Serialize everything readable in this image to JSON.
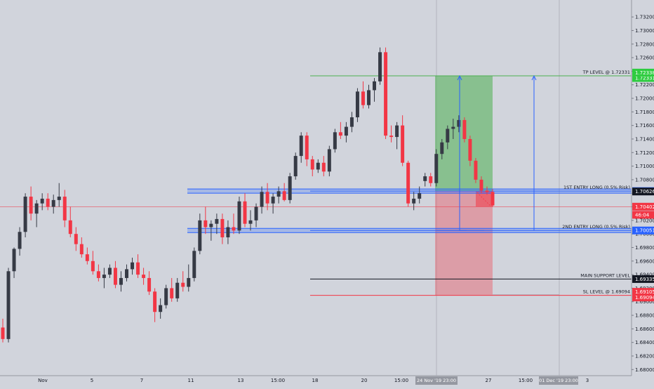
{
  "chart_data": {
    "type": "candlestick",
    "symbol_hint": "",
    "y_axis": {
      "ylim": [
        1.6791,
        1.7345
      ],
      "ticks": [
        "1.73200",
        "1.73000",
        "1.72800",
        "1.72600",
        "1.72400",
        "1.72200",
        "1.72000",
        "1.71800",
        "1.71600",
        "1.71400",
        "1.71200",
        "1.71000",
        "1.70800",
        "1.70600",
        "1.70400",
        "1.70200",
        "1.70000",
        "1.69800",
        "1.69600",
        "1.69400",
        "1.69200",
        "1.69000",
        "1.68800",
        "1.68600",
        "1.68400",
        "1.68200",
        "1.68000"
      ]
    },
    "x_axis": {
      "ticks": [
        "Nov",
        "5",
        "7",
        "11",
        "13",
        "15:00",
        "18",
        "20",
        "15:00",
        "27",
        "15:00",
        "3"
      ],
      "crosshair_labels": [
        "24 Nov '19  23:00",
        "01 Dec '19  23:00"
      ]
    },
    "candles": [
      {
        "o": 1.6862,
        "h": 1.6875,
        "l": 1.684,
        "c": 1.6845
      },
      {
        "o": 1.6845,
        "h": 1.695,
        "l": 1.684,
        "c": 1.6945
      },
      {
        "o": 1.6945,
        "h": 1.698,
        "l": 1.6935,
        "c": 1.6978
      },
      {
        "o": 1.6978,
        "h": 1.701,
        "l": 1.6968,
        "c": 1.7003
      },
      {
        "o": 1.7003,
        "h": 1.706,
        "l": 1.6995,
        "c": 1.7055
      },
      {
        "o": 1.7055,
        "h": 1.707,
        "l": 1.702,
        "c": 1.703
      },
      {
        "o": 1.703,
        "h": 1.705,
        "l": 1.701,
        "c": 1.7045
      },
      {
        "o": 1.7045,
        "h": 1.706,
        "l": 1.7035,
        "c": 1.7052
      },
      {
        "o": 1.7052,
        "h": 1.706,
        "l": 1.7035,
        "c": 1.704
      },
      {
        "o": 1.704,
        "h": 1.7058,
        "l": 1.703,
        "c": 1.705
      },
      {
        "o": 1.705,
        "h": 1.7075,
        "l": 1.704,
        "c": 1.7055
      },
      {
        "o": 1.7055,
        "h": 1.7065,
        "l": 1.701,
        "c": 1.702
      },
      {
        "o": 1.702,
        "h": 1.704,
        "l": 1.6995,
        "c": 1.7
      },
      {
        "o": 1.7,
        "h": 1.701,
        "l": 1.6975,
        "c": 1.6985
      },
      {
        "o": 1.6985,
        "h": 1.6995,
        "l": 1.6965,
        "c": 1.697
      },
      {
        "o": 1.697,
        "h": 1.698,
        "l": 1.6955,
        "c": 1.696
      },
      {
        "o": 1.696,
        "h": 1.6975,
        "l": 1.694,
        "c": 1.6945
      },
      {
        "o": 1.6945,
        "h": 1.6955,
        "l": 1.693,
        "c": 1.6935
      },
      {
        "o": 1.6935,
        "h": 1.695,
        "l": 1.692,
        "c": 1.694
      },
      {
        "o": 1.694,
        "h": 1.6955,
        "l": 1.6935,
        "c": 1.695
      },
      {
        "o": 1.695,
        "h": 1.696,
        "l": 1.692,
        "c": 1.6925
      },
      {
        "o": 1.6925,
        "h": 1.6945,
        "l": 1.6915,
        "c": 1.6935
      },
      {
        "o": 1.6935,
        "h": 1.6955,
        "l": 1.693,
        "c": 1.6948
      },
      {
        "o": 1.6948,
        "h": 1.6965,
        "l": 1.694,
        "c": 1.6958
      },
      {
        "o": 1.6958,
        "h": 1.697,
        "l": 1.6935,
        "c": 1.694
      },
      {
        "o": 1.694,
        "h": 1.695,
        "l": 1.6925,
        "c": 1.6935
      },
      {
        "o": 1.6935,
        "h": 1.6945,
        "l": 1.691,
        "c": 1.6915
      },
      {
        "o": 1.6915,
        "h": 1.692,
        "l": 1.687,
        "c": 1.6885
      },
      {
        "o": 1.6885,
        "h": 1.6905,
        "l": 1.6875,
        "c": 1.6895
      },
      {
        "o": 1.6895,
        "h": 1.6925,
        "l": 1.689,
        "c": 1.692
      },
      {
        "o": 1.692,
        "h": 1.6935,
        "l": 1.69,
        "c": 1.6905
      },
      {
        "o": 1.6905,
        "h": 1.6935,
        "l": 1.69,
        "c": 1.6928
      },
      {
        "o": 1.6928,
        "h": 1.6945,
        "l": 1.6915,
        "c": 1.6922
      },
      {
        "o": 1.6922,
        "h": 1.6955,
        "l": 1.6915,
        "c": 1.6935
      },
      {
        "o": 1.6935,
        "h": 1.698,
        "l": 1.693,
        "c": 1.6975
      },
      {
        "o": 1.6975,
        "h": 1.703,
        "l": 1.697,
        "c": 1.702
      },
      {
        "o": 1.702,
        "h": 1.704,
        "l": 1.7,
        "c": 1.701
      },
      {
        "o": 1.701,
        "h": 1.702,
        "l": 1.699,
        "c": 1.7015
      },
      {
        "o": 1.7015,
        "h": 1.703,
        "l": 1.7,
        "c": 1.7022
      },
      {
        "o": 1.7022,
        "h": 1.703,
        "l": 1.6985,
        "c": 1.6995
      },
      {
        "o": 1.6995,
        "h": 1.702,
        "l": 1.6985,
        "c": 1.701
      },
      {
        "o": 1.701,
        "h": 1.703,
        "l": 1.7,
        "c": 1.7005
      },
      {
        "o": 1.7005,
        "h": 1.7055,
        "l": 1.7,
        "c": 1.7048
      },
      {
        "o": 1.7048,
        "h": 1.706,
        "l": 1.701,
        "c": 1.7015
      },
      {
        "o": 1.7015,
        "h": 1.7035,
        "l": 1.7005,
        "c": 1.702
      },
      {
        "o": 1.702,
        "h": 1.7045,
        "l": 1.701,
        "c": 1.704
      },
      {
        "o": 1.704,
        "h": 1.707,
        "l": 1.703,
        "c": 1.7062
      },
      {
        "o": 1.7062,
        "h": 1.7075,
        "l": 1.7035,
        "c": 1.7045
      },
      {
        "o": 1.7045,
        "h": 1.706,
        "l": 1.703,
        "c": 1.7055
      },
      {
        "o": 1.7055,
        "h": 1.707,
        "l": 1.7045,
        "c": 1.7063
      },
      {
        "o": 1.7063,
        "h": 1.7075,
        "l": 1.7048,
        "c": 1.705
      },
      {
        "o": 1.705,
        "h": 1.709,
        "l": 1.7045,
        "c": 1.7085
      },
      {
        "o": 1.7085,
        "h": 1.712,
        "l": 1.708,
        "c": 1.7115
      },
      {
        "o": 1.7115,
        "h": 1.715,
        "l": 1.7105,
        "c": 1.7145
      },
      {
        "o": 1.7145,
        "h": 1.715,
        "l": 1.71,
        "c": 1.711
      },
      {
        "o": 1.711,
        "h": 1.7115,
        "l": 1.7085,
        "c": 1.7095
      },
      {
        "o": 1.7095,
        "h": 1.711,
        "l": 1.709,
        "c": 1.7105
      },
      {
        "o": 1.7105,
        "h": 1.7115,
        "l": 1.7085,
        "c": 1.7092
      },
      {
        "o": 1.7092,
        "h": 1.713,
        "l": 1.7085,
        "c": 1.7125
      },
      {
        "o": 1.7125,
        "h": 1.7155,
        "l": 1.712,
        "c": 1.715
      },
      {
        "o": 1.715,
        "h": 1.7165,
        "l": 1.714,
        "c": 1.7145
      },
      {
        "o": 1.7145,
        "h": 1.7165,
        "l": 1.7135,
        "c": 1.7158
      },
      {
        "o": 1.7158,
        "h": 1.718,
        "l": 1.715,
        "c": 1.7172
      },
      {
        "o": 1.7172,
        "h": 1.7215,
        "l": 1.7165,
        "c": 1.721
      },
      {
        "o": 1.721,
        "h": 1.7225,
        "l": 1.7185,
        "c": 1.719
      },
      {
        "o": 1.719,
        "h": 1.722,
        "l": 1.7185,
        "c": 1.7212
      },
      {
        "o": 1.7212,
        "h": 1.723,
        "l": 1.7195,
        "c": 1.7225
      },
      {
        "o": 1.7225,
        "h": 1.7275,
        "l": 1.722,
        "c": 1.7268
      },
      {
        "o": 1.7268,
        "h": 1.7275,
        "l": 1.714,
        "c": 1.7145
      },
      {
        "o": 1.7145,
        "h": 1.716,
        "l": 1.7135,
        "c": 1.7143
      },
      {
        "o": 1.7143,
        "h": 1.7165,
        "l": 1.7125,
        "c": 1.716
      },
      {
        "o": 1.716,
        "h": 1.7175,
        "l": 1.71,
        "c": 1.7105
      },
      {
        "o": 1.7105,
        "h": 1.7108,
        "l": 1.704,
        "c": 1.7045
      },
      {
        "o": 1.7045,
        "h": 1.7062,
        "l": 1.7035,
        "c": 1.7052
      },
      {
        "o": 1.7052,
        "h": 1.707,
        "l": 1.7045,
        "c": 1.706
      },
      {
        "o": 1.7078,
        "h": 1.709,
        "l": 1.707,
        "c": 1.7085
      },
      {
        "o": 1.7085,
        "h": 1.709,
        "l": 1.707,
        "c": 1.7075
      },
      {
        "o": 1.7075,
        "h": 1.7125,
        "l": 1.707,
        "c": 1.7118
      },
      {
        "o": 1.7118,
        "h": 1.714,
        "l": 1.711,
        "c": 1.7135
      },
      {
        "o": 1.7135,
        "h": 1.716,
        "l": 1.7125,
        "c": 1.7155
      },
      {
        "o": 1.7155,
        "h": 1.717,
        "l": 1.714,
        "c": 1.7158
      },
      {
        "o": 1.7158,
        "h": 1.7175,
        "l": 1.715,
        "c": 1.7168
      },
      {
        "o": 1.7168,
        "h": 1.7172,
        "l": 1.7135,
        "c": 1.714
      },
      {
        "o": 1.714,
        "h": 1.7145,
        "l": 1.71,
        "c": 1.7108
      },
      {
        "o": 1.7108,
        "h": 1.7112,
        "l": 1.7075,
        "c": 1.708
      },
      {
        "o": 1.708,
        "h": 1.7085,
        "l": 1.706,
        "c": 1.7064
      },
      {
        "o": 1.7064,
        "h": 1.707,
        "l": 1.7058,
        "c": 1.7062
      },
      {
        "o": 1.7062,
        "h": 1.7066,
        "l": 1.704,
        "c": 1.7042
      }
    ],
    "up_color": "#363a45",
    "down_color": "#f23645",
    "levels": [
      {
        "name": "TP LEVEL @ 1.72331",
        "price": 1.72331,
        "line_color": "#4caf50",
        "tag": "1.72331",
        "tag_color": "#2ecc40"
      },
      {
        "name": "1ST ENTRY LONG (0.5% Risk)",
        "price": 1.70632,
        "line_color": "#2962ff",
        "tag": "1.70632",
        "tag_color": "#2962ff"
      },
      {
        "name": "2ND ENTRY LONG (0.5% Risk)",
        "price": 1.70051,
        "line_color": "#2962ff",
        "tag": "1.70051",
        "tag_color": "#2962ff"
      },
      {
        "name": "MAIN SUPPORT LEVEL",
        "price": 1.69335,
        "line_color": "#131722",
        "tag": "1.69335",
        "tag_color": "#131722"
      },
      {
        "name": "SL LEVEL @ 1.69094",
        "price": 1.69094,
        "line_color": "#f23645",
        "tag": "1.69094",
        "tag_color": "#f23645"
      }
    ],
    "extra_price_tags": [
      {
        "price": 1.72338,
        "label": "1.72338",
        "color": "#2ecc40"
      },
      {
        "price": 1.70626,
        "label": "1.70626",
        "color": "#131722"
      },
      {
        "price": 1.70402,
        "label": "1.70402",
        "color": "#f23645"
      },
      {
        "price": 1.70282,
        "label": "46:04",
        "color": "#f23645"
      },
      {
        "price": 1.69105,
        "label": "1.69105",
        "color": "#f23645"
      }
    ],
    "current_price": 1.70402,
    "position": {
      "entry": 1.70632,
      "target": 1.72331,
      "stop": 1.69094,
      "profit_color": "#4caf50",
      "loss_color": "#f23645"
    },
    "arrows": [
      {
        "from": 1.70051,
        "to": 1.72331
      },
      {
        "from": 1.70051,
        "to": 1.72331
      }
    ]
  }
}
